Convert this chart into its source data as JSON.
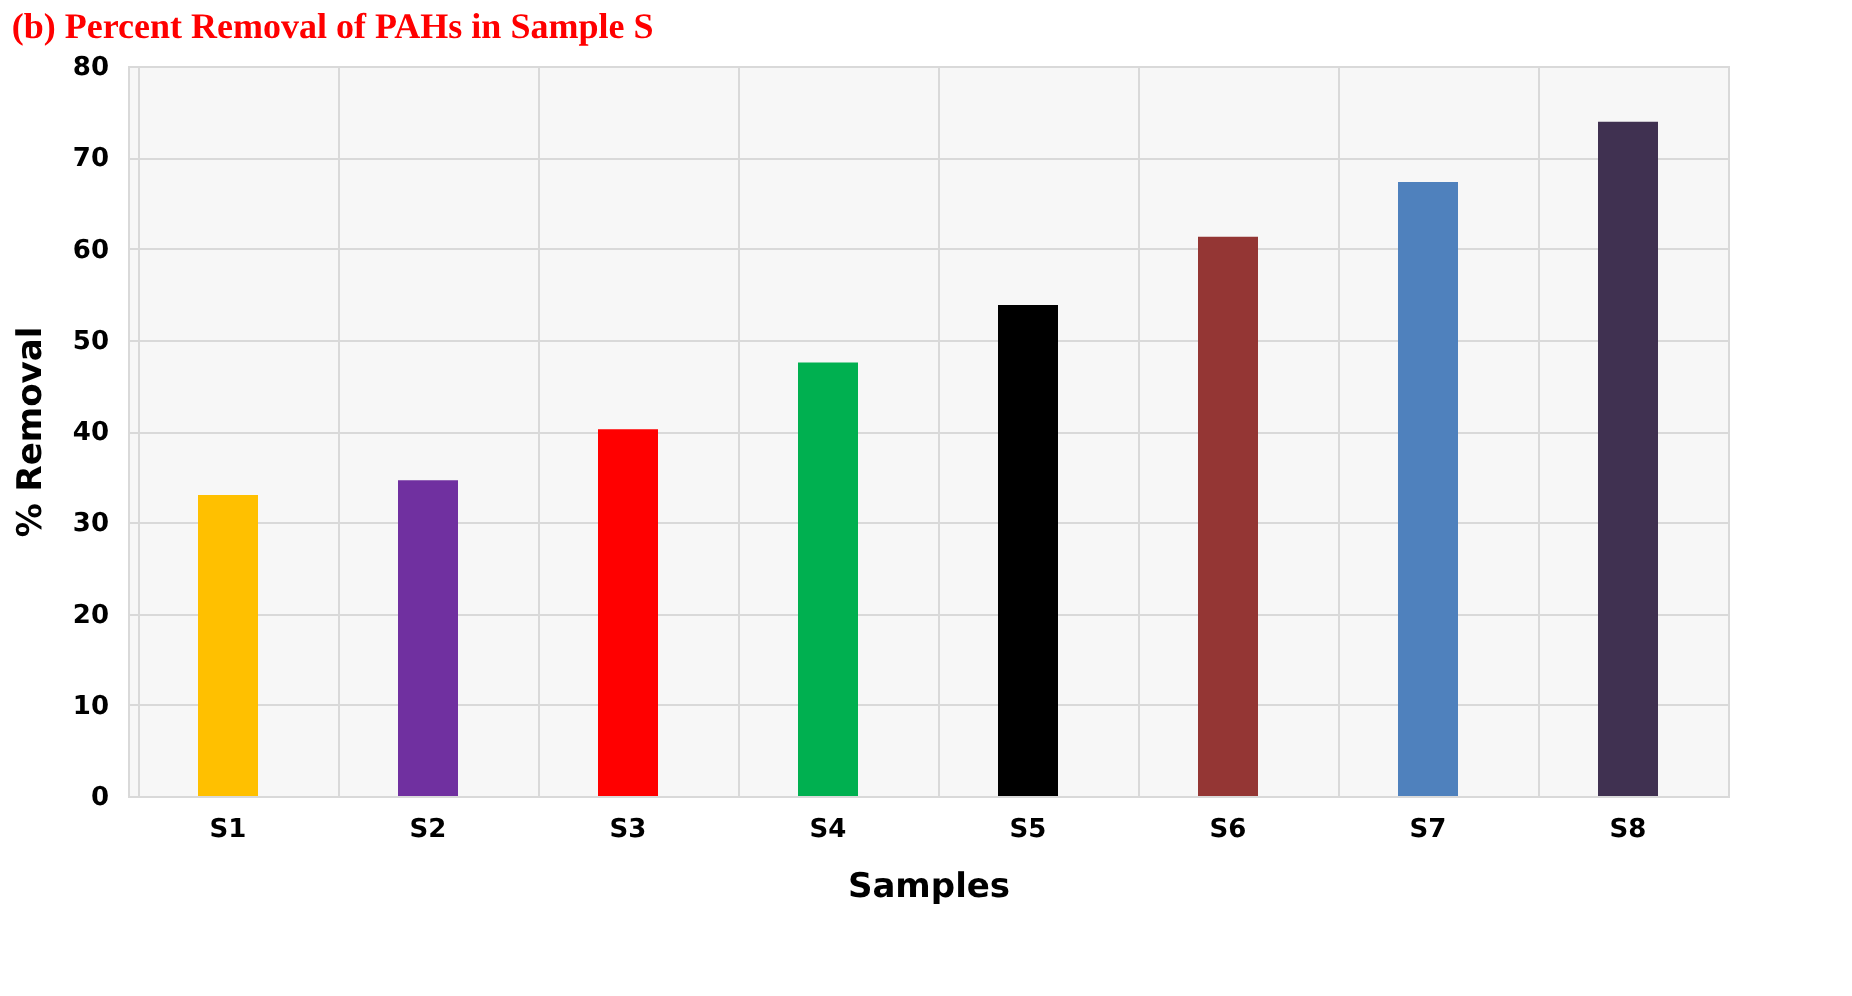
{
  "chart_data": {
    "type": "bar",
    "title": "(b) Percent Removal of PAHs in Sample S",
    "xlabel": "Samples",
    "ylabel": "% Removal",
    "categories": [
      "S1",
      "S2",
      "S3",
      "S4",
      "S5",
      "S6",
      "S7",
      "S8"
    ],
    "values": [
      33.0,
      34.6,
      40.2,
      47.5,
      53.8,
      61.3,
      67.3,
      73.9
    ],
    "colors": [
      "#ffc000",
      "#7030a0",
      "#ff0000",
      "#00b050",
      "#000000",
      "#943634",
      "#4f81bd",
      "#403151"
    ],
    "ylim": [
      0,
      80
    ],
    "yticks": [
      0,
      10,
      20,
      30,
      40,
      50,
      60,
      70,
      80
    ],
    "grid": true
  }
}
